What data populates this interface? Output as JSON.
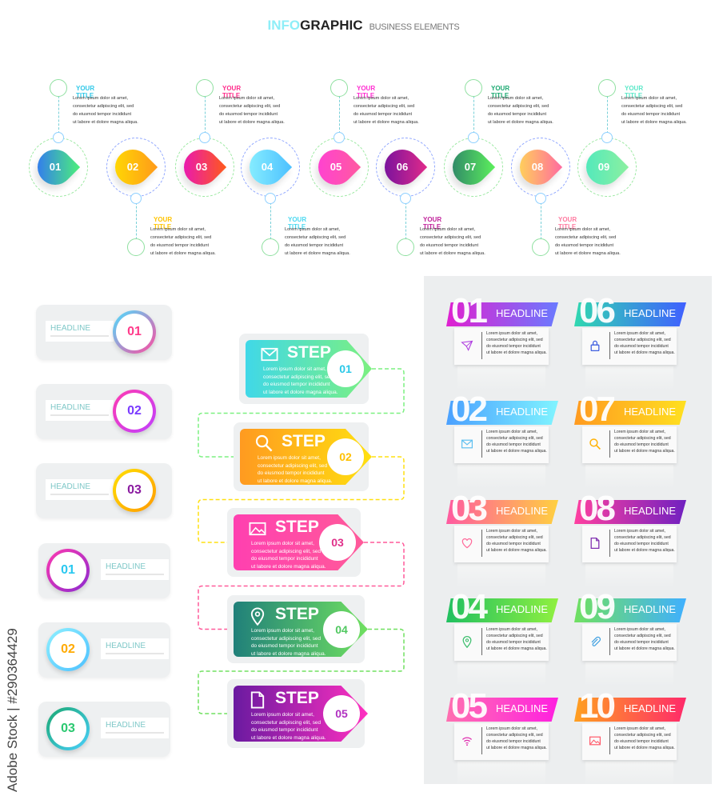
{
  "header": {
    "accent": "INFO",
    "main": "GRAPHIC",
    "sub": "BUSINESS ELEMENTS"
  },
  "lorem": [
    "Lorem ipsum dolor sit amet,",
    "consectetur adipiscing elit, sed",
    "do eiusmod tempor incididunt",
    "ut labore et dolore magna aliqua."
  ],
  "timeline": [
    {
      "num": "01",
      "title": "YOUR TITLE",
      "pos": "top",
      "title_color": "#2ec8e8",
      "grad": [
        "#2f6bff",
        "#4cf07a"
      ]
    },
    {
      "num": "02",
      "title": "YOUR TITLE",
      "pos": "bottom",
      "title_color": "#ffc400",
      "grad": [
        "#ffe000",
        "#ff9a1a"
      ]
    },
    {
      "num": "03",
      "title": "YOUR TITLE",
      "pos": "top",
      "title_color": "#ff2a8a",
      "grad": [
        "#e60fc8",
        "#ff5a1a"
      ]
    },
    {
      "num": "04",
      "title": "YOUR TITLE",
      "pos": "bottom",
      "title_color": "#4ad8f0",
      "grad": [
        "#8ff4ff",
        "#4cc0ff"
      ]
    },
    {
      "num": "05",
      "title": "YOUR TITLE",
      "pos": "top",
      "title_color": "#ff2ad0",
      "grad": [
        "#ff3fd8",
        "#ff5aa0"
      ]
    },
    {
      "num": "06",
      "title": "YOUR TITLE",
      "pos": "bottom",
      "title_color": "#c0209a",
      "grad": [
        "#6a0fa0",
        "#e02a8a"
      ]
    },
    {
      "num": "07",
      "title": "YOUR TITLE",
      "pos": "top",
      "title_color": "#1aa870",
      "grad": [
        "#2a7a6a",
        "#5cf05c"
      ]
    },
    {
      "num": "08",
      "title": "YOUR TITLE",
      "pos": "bottom",
      "title_color": "#ff7aa0",
      "grad": [
        "#ffe050",
        "#ff6aa0"
      ]
    },
    {
      "num": "09",
      "title": "YOUR TITLE",
      "pos": "top",
      "title_color": "#5ae8c8",
      "grad": [
        "#4ae8c0",
        "#8cf0a0"
      ]
    }
  ],
  "left_cards": [
    {
      "num": "01",
      "headline": "HEADLINE",
      "side": "right",
      "num_color": "#ff3a8a",
      "ring": [
        "#4ae0ff",
        "#ff4aa0"
      ]
    },
    {
      "num": "02",
      "headline": "HEADLINE",
      "side": "right",
      "num_color": "#7a3aff",
      "ring": [
        "#ff3ab0",
        "#c040ff"
      ]
    },
    {
      "num": "03",
      "headline": "HEADLINE",
      "side": "right",
      "num_color": "#8a1aa0",
      "ring": [
        "#ffe000",
        "#ff9a00"
      ]
    },
    {
      "num": "01",
      "headline": "HEADLINE",
      "side": "left",
      "num_color": "#2ac8f0",
      "ring": [
        "#ff3ab0",
        "#8a2ad0"
      ]
    },
    {
      "num": "02",
      "headline": "HEADLINE",
      "side": "left",
      "num_color": "#ffaa00",
      "ring": [
        "#8ff0ff",
        "#4cc0ff"
      ]
    },
    {
      "num": "03",
      "headline": "HEADLINE",
      "side": "left",
      "num_color": "#2ac870",
      "ring": [
        "#1aa870",
        "#4ad0ff"
      ]
    }
  ],
  "steps": [
    {
      "num": "01",
      "label": "STEP",
      "icon": "mail-icon",
      "grad": [
        "#40d8e8",
        "#7cf080"
      ],
      "num_color": "#2ac8e8"
    },
    {
      "num": "02",
      "label": "STEP",
      "icon": "search-icon",
      "grad": [
        "#ff9a20",
        "#ffe010"
      ],
      "num_color": "#ffc000"
    },
    {
      "num": "03",
      "label": "STEP",
      "icon": "image-icon",
      "grad": [
        "#ff40b0",
        "#ff5a9a"
      ],
      "num_color": "#e0308a"
    },
    {
      "num": "04",
      "label": "STEP",
      "icon": "location-pin-icon",
      "grad": [
        "#20807a",
        "#70e060"
      ],
      "num_color": "#50c860"
    },
    {
      "num": "05",
      "label": "STEP",
      "icon": "document-icon",
      "grad": [
        "#6a1aa0",
        "#ff30c0"
      ],
      "num_color": "#b030c0"
    }
  ],
  "right_cards": [
    {
      "num": "01",
      "headline": "HEADLINE",
      "icon": "send-icon",
      "grad": [
        "#e020d0",
        "#6a7aff"
      ],
      "icon_color": "#b040e0"
    },
    {
      "num": "02",
      "headline": "HEADLINE",
      "icon": "mail-icon",
      "grad": [
        "#4aa0ff",
        "#80f4ff"
      ],
      "icon_color": "#60c0f0"
    },
    {
      "num": "03",
      "headline": "HEADLINE",
      "icon": "heart-icon",
      "grad": [
        "#ff5aa0",
        "#ffd040"
      ],
      "icon_color": "#ff6a9a"
    },
    {
      "num": "04",
      "headline": "HEADLINE",
      "icon": "location-pin-icon",
      "grad": [
        "#20c060",
        "#90f040"
      ],
      "icon_color": "#40c070"
    },
    {
      "num": "05",
      "headline": "HEADLINE",
      "icon": "wifi-icon",
      "grad": [
        "#ff70b0",
        "#ff20e0"
      ],
      "icon_color": "#e030b0"
    },
    {
      "num": "06",
      "headline": "HEADLINE",
      "icon": "lock-icon",
      "grad": [
        "#30d8b0",
        "#4060ff"
      ],
      "icon_color": "#4060e0"
    },
    {
      "num": "07",
      "headline": "HEADLINE",
      "icon": "search-icon",
      "grad": [
        "#ff9a20",
        "#ffe020"
      ],
      "icon_color": "#ffb000"
    },
    {
      "num": "08",
      "headline": "HEADLINE",
      "icon": "document-icon",
      "grad": [
        "#ff40a0",
        "#7020c0"
      ],
      "icon_color": "#8030b0"
    },
    {
      "num": "09",
      "headline": "HEADLINE",
      "icon": "paperclip-icon",
      "grad": [
        "#70e060",
        "#40b0ff"
      ],
      "icon_color": "#40a0e0"
    },
    {
      "num": "10",
      "headline": "HEADLINE",
      "icon": "image-icon",
      "grad": [
        "#ffa020",
        "#ff2a6a"
      ],
      "icon_color": "#ff5a6a"
    }
  ],
  "watermark": "Adobe Stock | #290364429"
}
